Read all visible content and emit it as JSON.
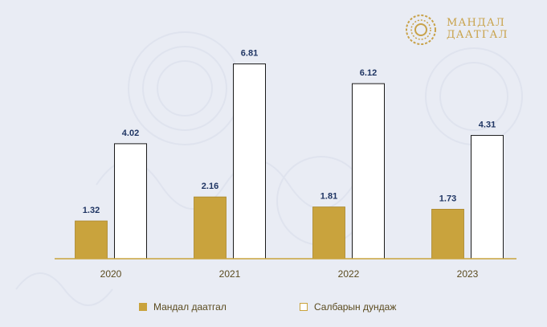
{
  "logo": {
    "line1": "МАНДАЛ",
    "line2": "ДААТГАЛ",
    "icon": "sun-mandala-icon"
  },
  "colors": {
    "gold": "#c9a33d",
    "gold_border": "#a9862c",
    "white_bar": "#ffffff",
    "white_border": "#c9a33d",
    "axis": "#c9a33d",
    "label": "#1f3563",
    "year": "#5a4a1e"
  },
  "chart_data": {
    "type": "bar",
    "categories": [
      "2020",
      "2021",
      "2022",
      "2023"
    ],
    "series": [
      {
        "name": "Мандал даатгал",
        "values": [
          1.32,
          2.16,
          1.81,
          1.73
        ]
      },
      {
        "name": "Салбарын дундаж",
        "values": [
          4.02,
          6.81,
          6.12,
          4.31
        ]
      }
    ],
    "title": "",
    "xlabel": "",
    "ylabel": "",
    "ylim": [
      0,
      7.5
    ],
    "grid": false,
    "legend_position": "bottom"
  }
}
